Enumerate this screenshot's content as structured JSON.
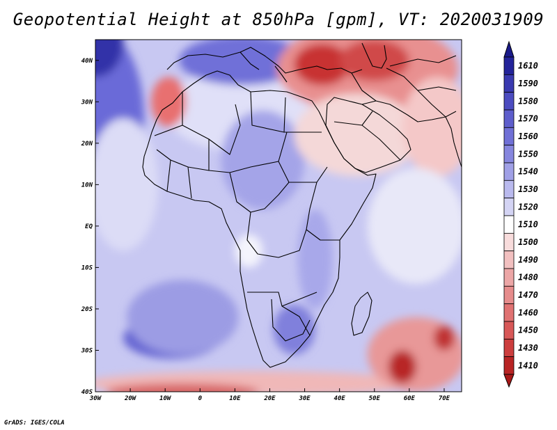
{
  "title": "Geopotential Height at 850hPa [gpm], VT: 2020031909",
  "credit": "GrADS: IGES/COLA",
  "map": {
    "lon_range": [
      -30,
      75
    ],
    "lat_range": [
      -40,
      45
    ],
    "x_ticks": [
      {
        "lon": -30,
        "label": "30W"
      },
      {
        "lon": -20,
        "label": "20W"
      },
      {
        "lon": -10,
        "label": "10W"
      },
      {
        "lon": 0,
        "label": "0"
      },
      {
        "lon": 10,
        "label": "10E"
      },
      {
        "lon": 20,
        "label": "20E"
      },
      {
        "lon": 30,
        "label": "30E"
      },
      {
        "lon": 40,
        "label": "40E"
      },
      {
        "lon": 50,
        "label": "50E"
      },
      {
        "lon": 60,
        "label": "60E"
      },
      {
        "lon": 70,
        "label": "70E"
      }
    ],
    "y_ticks": [
      {
        "lat": 40,
        "label": "40N"
      },
      {
        "lat": 30,
        "label": "30N"
      },
      {
        "lat": 20,
        "label": "20N"
      },
      {
        "lat": 10,
        "label": "10N"
      },
      {
        "lat": 0,
        "label": "EQ"
      },
      {
        "lat": -10,
        "label": "10S"
      },
      {
        "lat": -20,
        "label": "20S"
      },
      {
        "lat": -30,
        "label": "30S"
      },
      {
        "lat": -40,
        "label": "40S"
      }
    ],
    "base_color": "#c8c8f2",
    "field_blobs": [
      {
        "name": "east-subtropical-ridge",
        "lon": -30,
        "lat": 26,
        "rlon": 14,
        "rlat": 22,
        "color": "#6a6ad8"
      },
      {
        "name": "northwest-high",
        "lon": -30,
        "lat": 44,
        "rlon": 8,
        "rlat": 8,
        "color": "#3030a8"
      },
      {
        "name": "atlantic-pale",
        "lon": -22,
        "lat": 10,
        "rlon": 10,
        "rlat": 16,
        "color": "#dcdcf6"
      },
      {
        "name": "north-africa-pale",
        "lon": 12,
        "lat": 28,
        "rlon": 22,
        "rlat": 10,
        "color": "#e0e0f8"
      },
      {
        "name": "mediterranean-high",
        "lon": 12,
        "lat": 40,
        "rlon": 18,
        "rlat": 6,
        "color": "#7070d8"
      },
      {
        "name": "sahara-mid",
        "lon": 18,
        "lat": 16,
        "rlon": 12,
        "rlat": 12,
        "color": "#a4a4e8"
      },
      {
        "name": "morocco-low",
        "lon": -9,
        "lat": 30,
        "rlon": 5,
        "rlat": 6,
        "color": "#e87070"
      },
      {
        "name": "middle-east-low",
        "lon": 48,
        "lat": 38,
        "rlon": 26,
        "rlat": 11,
        "color": "#e89090"
      },
      {
        "name": "turkey-low-core",
        "lon": 35,
        "lat": 39,
        "rlon": 8,
        "rlat": 5,
        "color": "#c83030"
      },
      {
        "name": "iran-low-core",
        "lon": 50,
        "lat": 40,
        "rlon": 10,
        "rlat": 5,
        "color": "#d04848"
      },
      {
        "name": "arabia-pink",
        "lon": 45,
        "lat": 22,
        "rlon": 18,
        "rlat": 10,
        "color": "#f4d8d8"
      },
      {
        "name": "india-pink",
        "lon": 68,
        "lat": 24,
        "rlon": 10,
        "rlat": 12,
        "color": "#f4c8c8"
      },
      {
        "name": "indian-ocean-pale",
        "lon": 62,
        "lat": 0,
        "rlon": 14,
        "rlat": 14,
        "color": "#e8e8f8"
      },
      {
        "name": "east-africa-mid",
        "lon": 33,
        "lat": -8,
        "rlon": 5,
        "rlat": 12,
        "color": "#a8a8ea"
      },
      {
        "name": "southern-africa-high",
        "lon": 27,
        "lat": -25,
        "rlon": 6,
        "rlat": 6,
        "color": "#8080dc"
      },
      {
        "name": "south-atlantic-high",
        "lon": -8,
        "lat": -27,
        "rlon": 14,
        "rlat": 5,
        "color": "#6464d2"
      },
      {
        "name": "south-atlantic-mid",
        "lon": -5,
        "lat": -22,
        "rlon": 16,
        "rlat": 9,
        "color": "#9c9ce4"
      },
      {
        "name": "congo-white",
        "lon": 14,
        "lat": -6,
        "rlon": 4,
        "rlat": 4,
        "color": "#f4f4fc"
      },
      {
        "name": "south-ocean-pink",
        "lon": 15,
        "lat": -38,
        "rlon": 48,
        "rlat": 3,
        "color": "#f0b8b8"
      },
      {
        "name": "south-ocean-red",
        "lon": -5,
        "lat": -40,
        "rlon": 22,
        "rlat": 2,
        "color": "#d86868"
      },
      {
        "name": "sw-indian-low",
        "lon": 62,
        "lat": -31,
        "rlon": 14,
        "rlat": 9,
        "color": "#e89898"
      },
      {
        "name": "sw-indian-low-core",
        "lon": 58,
        "lat": -34,
        "rlon": 4,
        "rlat": 4,
        "color": "#b82828"
      },
      {
        "name": "sw-indian-low-core-2",
        "lon": 70,
        "lat": -27,
        "rlon": 3,
        "rlat": 3,
        "color": "#c03030"
      }
    ]
  },
  "colorbar": {
    "levels": [
      {
        "label": "1610",
        "color": "#24249a"
      },
      {
        "label": "1590",
        "color": "#3a3ab0"
      },
      {
        "label": "1580",
        "color": "#4c4cc0"
      },
      {
        "label": "1570",
        "color": "#5e5ecc"
      },
      {
        "label": "1560",
        "color": "#7070d6"
      },
      {
        "label": "1550",
        "color": "#8686de"
      },
      {
        "label": "1540",
        "color": "#a0a0e6"
      },
      {
        "label": "1530",
        "color": "#babaee"
      },
      {
        "label": "1520",
        "color": "#d4d4f4"
      },
      {
        "label": "1510",
        "color": "#ffffff"
      },
      {
        "label": "1500",
        "color": "#f8dcdc"
      },
      {
        "label": "1490",
        "color": "#f2c0c0"
      },
      {
        "label": "1480",
        "color": "#eca6a6"
      },
      {
        "label": "1470",
        "color": "#e68c8c"
      },
      {
        "label": "1460",
        "color": "#e07272"
      },
      {
        "label": "1450",
        "color": "#d85858"
      },
      {
        "label": "1430",
        "color": "#cc3e3e"
      },
      {
        "label": "1410",
        "color": "#b82424"
      }
    ],
    "top_arrow_color": "#1a1a8a",
    "bottom_arrow_color": "#a81818"
  }
}
